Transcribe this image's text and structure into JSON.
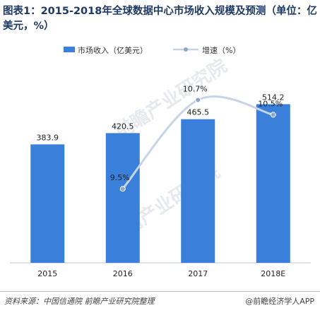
{
  "title": "图表1：2015-2018年全球数据中心市场收入规模及预测（单位：亿美元，%）",
  "colors": {
    "bar": "#3a7fd9",
    "line": "#c7d4e6",
    "marker": "#8ea6c8",
    "axis": "#bfc4cc"
  },
  "watermark": "前瞻产业研究院",
  "footer": {
    "source": "资料来源：中国信通院 前瞻产业研究院整理",
    "credit": "@前瞻经济学人APP"
  },
  "chart_data": {
    "type": "bar",
    "categories": [
      "2015",
      "2016",
      "2017",
      "2018E"
    ],
    "series": [
      {
        "name": "市场收入（亿美元）",
        "type": "bar",
        "values": [
          383.9,
          420.5,
          465.5,
          514.2
        ],
        "labels": [
          "383.9",
          "420.5",
          "465.5",
          "514.2"
        ]
      },
      {
        "name": "增速（%）",
        "type": "line",
        "values": [
          null,
          9.5,
          10.7,
          10.5
        ],
        "labels": [
          "",
          "9.5%",
          "10.7%",
          "10.5%"
        ]
      }
    ],
    "xlabel": "",
    "ylabel": "",
    "ylim": [
      0,
      600
    ],
    "y2lim": [
      8.5,
      11
    ],
    "grid": false,
    "legend": "top"
  }
}
